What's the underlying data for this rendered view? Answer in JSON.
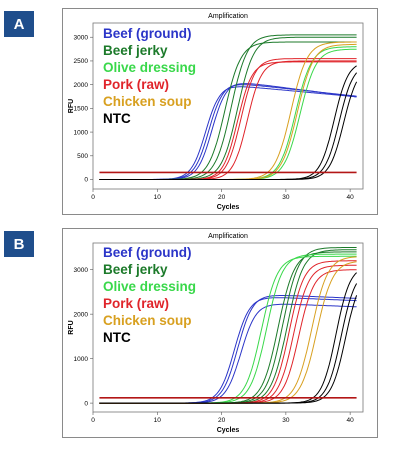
{
  "panels": [
    {
      "label": "A",
      "chart_title": "Amplification"
    },
    {
      "label": "B",
      "chart_title": "Amplification"
    }
  ],
  "legend": [
    {
      "name": "Beef (ground)",
      "color": "#2b35c8"
    },
    {
      "name": "Beef jerky",
      "color": "#1c7a2a"
    },
    {
      "name": "Olive dressing",
      "color": "#39d84a"
    },
    {
      "name": "Pork (raw)",
      "color": "#e0242a"
    },
    {
      "name": "Chicken soup",
      "color": "#d8a020"
    },
    {
      "name": "NTC",
      "color": "#000000"
    }
  ],
  "chart_data": [
    {
      "type": "line",
      "title": "Amplification",
      "xlabel": "Cycles",
      "ylabel": "RFU",
      "xlim": [
        0,
        42
      ],
      "ylim": [
        -200,
        3300
      ],
      "xticks": [
        0,
        10,
        20,
        30,
        40
      ],
      "yticks": [
        0,
        500,
        1000,
        1500,
        2000,
        2500,
        3000
      ],
      "threshold": 150,
      "threshold_color": "#b31616",
      "series": [
        {
          "name": "Beef (ground)",
          "color": "#2b35c8",
          "curves": [
            {
              "midpoint": 18.5,
              "plateau": 2080,
              "slope": 0.9,
              "decay": 12
            },
            {
              "midpoint": 18.0,
              "plateau": 2050,
              "slope": 0.9,
              "decay": 14
            },
            {
              "midpoint": 17.5,
              "plateau": 2000,
              "slope": 0.9,
              "decay": 16
            }
          ]
        },
        {
          "name": "Beef jerky",
          "color": "#1c7a2a",
          "curves": [
            {
              "midpoint": 21.5,
              "plateau": 3050,
              "slope": 0.8
            },
            {
              "midpoint": 22.5,
              "plateau": 3000,
              "slope": 0.8
            },
            {
              "midpoint": 20.5,
              "plateau": 2900,
              "slope": 0.8
            }
          ]
        },
        {
          "name": "Olive dressing",
          "color": "#39d84a",
          "curves": [
            {
              "midpoint": 31.5,
              "plateau": 2800,
              "slope": 0.8
            },
            {
              "midpoint": 32.2,
              "plateau": 2750,
              "slope": 0.8
            }
          ]
        },
        {
          "name": "Pork (raw)",
          "color": "#e0242a",
          "curves": [
            {
              "midpoint": 23.0,
              "plateau": 2550,
              "slope": 0.9
            },
            {
              "midpoint": 24.0,
              "plateau": 2500,
              "slope": 0.9
            },
            {
              "midpoint": 22.5,
              "plateau": 2480,
              "slope": 0.9
            }
          ]
        },
        {
          "name": "Chicken soup",
          "color": "#d8a020",
          "curves": [
            {
              "midpoint": 30.8,
              "plateau": 2900,
              "slope": 0.8
            },
            {
              "midpoint": 31.8,
              "plateau": 2850,
              "slope": 0.8
            }
          ]
        },
        {
          "name": "NTC",
          "color": "#000000",
          "curves": [
            {
              "midpoint": 37.5,
              "plateau": 2500,
              "slope": 0.9
            },
            {
              "midpoint": 38.3,
              "plateau": 2450,
              "slope": 0.9
            },
            {
              "midpoint": 39.0,
              "plateau": 2400,
              "slope": 0.9
            }
          ]
        }
      ]
    },
    {
      "type": "line",
      "title": "Amplification",
      "xlabel": "Cycles",
      "ylabel": "RFU",
      "xlim": [
        0,
        42
      ],
      "ylim": [
        -200,
        3600
      ],
      "xticks": [
        0,
        10,
        20,
        30,
        40
      ],
      "yticks": [
        0,
        1000,
        2000,
        3000
      ],
      "threshold": 120,
      "threshold_color": "#b31616",
      "series": [
        {
          "name": "Beef (ground)",
          "color": "#2b35c8",
          "curves": [
            {
              "midpoint": 22.5,
              "plateau": 2450,
              "slope": 0.85,
              "decay": 40
            },
            {
              "midpoint": 22.0,
              "plateau": 2400,
              "slope": 0.85,
              "decay": 40
            },
            {
              "midpoint": 23.0,
              "plateau": 2250,
              "slope": 0.85,
              "decay": 40
            }
          ]
        },
        {
          "name": "Beef jerky",
          "color": "#1c7a2a",
          "curves": [
            {
              "midpoint": 29.5,
              "plateau": 3500,
              "slope": 0.8
            },
            {
              "midpoint": 30.2,
              "plateau": 3450,
              "slope": 0.8
            },
            {
              "midpoint": 28.8,
              "plateau": 3400,
              "slope": 0.8
            }
          ]
        },
        {
          "name": "Olive dressing",
          "color": "#39d84a",
          "curves": [
            {
              "midpoint": 27.0,
              "plateau": 3350,
              "slope": 0.8
            },
            {
              "midpoint": 26.2,
              "plateau": 3300,
              "slope": 0.8
            }
          ]
        },
        {
          "name": "Pork (raw)",
          "color": "#e0242a",
          "curves": [
            {
              "midpoint": 30.5,
              "plateau": 3200,
              "slope": 0.85
            },
            {
              "midpoint": 31.2,
              "plateau": 3100,
              "slope": 0.85
            },
            {
              "midpoint": 32.0,
              "plateau": 3000,
              "slope": 0.85
            }
          ]
        },
        {
          "name": "Chicken soup",
          "color": "#d8a020",
          "curves": [
            {
              "midpoint": 34.0,
              "plateau": 3300,
              "slope": 0.8
            },
            {
              "midpoint": 34.8,
              "plateau": 3200,
              "slope": 0.8
            }
          ]
        },
        {
          "name": "NTC",
          "color": "#000000",
          "curves": [
            {
              "midpoint": 37.8,
              "plateau": 3100,
              "slope": 0.9
            },
            {
              "midpoint": 38.6,
              "plateau": 3000,
              "slope": 0.9
            },
            {
              "midpoint": 39.3,
              "plateau": 2950,
              "slope": 0.9
            }
          ]
        }
      ]
    }
  ]
}
